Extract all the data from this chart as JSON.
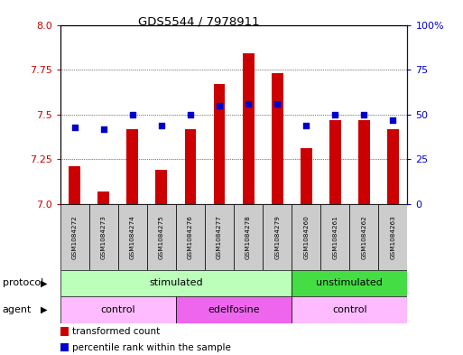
{
  "title": "GDS5544 / 7978911",
  "samples": [
    "GSM1084272",
    "GSM1084273",
    "GSM1084274",
    "GSM1084275",
    "GSM1084276",
    "GSM1084277",
    "GSM1084278",
    "GSM1084279",
    "GSM1084260",
    "GSM1084261",
    "GSM1084262",
    "GSM1084263"
  ],
  "transformed_count": [
    7.21,
    7.07,
    7.42,
    7.19,
    7.42,
    7.67,
    7.84,
    7.73,
    7.31,
    7.47,
    7.47,
    7.42
  ],
  "percentile_rank": [
    43,
    42,
    50,
    44,
    50,
    55,
    56,
    56,
    44,
    50,
    50,
    47
  ],
  "ylim_left": [
    7.0,
    8.0
  ],
  "ylim_right": [
    0,
    100
  ],
  "yticks_left": [
    7.0,
    7.25,
    7.5,
    7.75,
    8.0
  ],
  "yticks_right": [
    0,
    25,
    50,
    75,
    100
  ],
  "bar_color": "#cc0000",
  "dot_color": "#0000cc",
  "bar_width": 0.4,
  "protocol_groups": [
    {
      "label": "stimulated",
      "start": 0,
      "end": 7,
      "color": "#bbffbb"
    },
    {
      "label": "unstimulated",
      "start": 8,
      "end": 11,
      "color": "#44dd44"
    }
  ],
  "agent_groups": [
    {
      "label": "control",
      "start": 0,
      "end": 3,
      "color": "#ffbbff"
    },
    {
      "label": "edelfosine",
      "start": 4,
      "end": 7,
      "color": "#ee66ee"
    },
    {
      "label": "control",
      "start": 8,
      "end": 11,
      "color": "#ffbbff"
    }
  ],
  "legend_bar_label": "transformed count",
  "legend_dot_label": "percentile rank within the sample",
  "protocol_label": "protocol",
  "agent_label": "agent",
  "sample_bg": "#cccccc",
  "plot_bg": "#ffffff"
}
